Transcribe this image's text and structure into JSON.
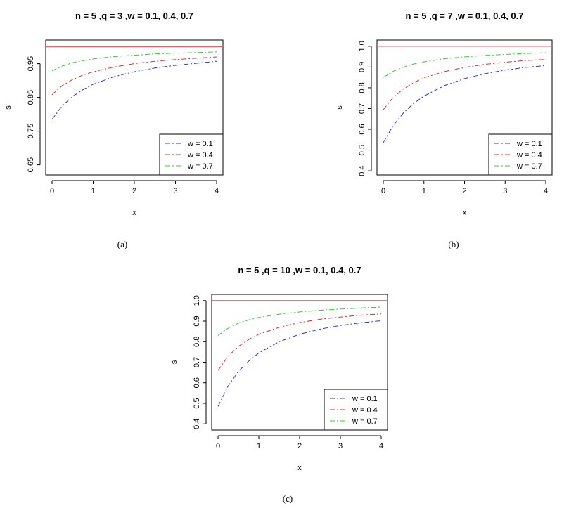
{
  "chart_data": [
    {
      "type": "line",
      "panel_label": "(a)",
      "title": "n = 5 ,q = 3 ,w = 0.1, 0.4, 0.7",
      "xlabel": "x",
      "ylabel": "s",
      "xlim": [
        0,
        4
      ],
      "ylim": [
        0.62,
        1.02
      ],
      "x_ticks": [
        "0",
        "1",
        "2",
        "3",
        "4"
      ],
      "y_ticks": [
        "0.65",
        "0.75",
        "0.85",
        "0.95"
      ],
      "legend_position": "bottom-right",
      "reference_line": {
        "y": 1.0,
        "color": "#e06666"
      },
      "x": [
        0,
        0.25,
        0.5,
        0.75,
        1,
        1.5,
        2,
        2.5,
        3,
        3.5,
        4
      ],
      "series": [
        {
          "name": "w = 0.1",
          "color": "#3333cc",
          "values": [
            0.785,
            0.825,
            0.853,
            0.873,
            0.889,
            0.911,
            0.926,
            0.937,
            0.945,
            0.951,
            0.957
          ]
        },
        {
          "name": "w = 0.4",
          "color": "#cc3333",
          "values": [
            0.858,
            0.885,
            0.903,
            0.916,
            0.926,
            0.94,
            0.95,
            0.957,
            0.962,
            0.966,
            0.97
          ]
        },
        {
          "name": "w = 0.7",
          "color": "#33cc33",
          "values": [
            0.929,
            0.943,
            0.953,
            0.959,
            0.964,
            0.971,
            0.975,
            0.979,
            0.981,
            0.983,
            0.985
          ]
        }
      ]
    },
    {
      "type": "line",
      "panel_label": "(b)",
      "title": "n = 5 ,q = 7 ,w = 0.1, 0.4, 0.7",
      "xlabel": "x",
      "ylabel": "s",
      "xlim": [
        0,
        4
      ],
      "ylim": [
        0.38,
        1.03
      ],
      "x_ticks": [
        "0",
        "1",
        "2",
        "3",
        "4"
      ],
      "y_ticks": [
        "0.4",
        "0.5",
        "0.6",
        "0.7",
        "0.8",
        "0.9",
        "1.0"
      ],
      "legend_position": "bottom-right",
      "reference_line": {
        "y": 1.0,
        "color": "#e06666"
      },
      "x": [
        0,
        0.25,
        0.5,
        0.75,
        1,
        1.5,
        2,
        2.5,
        3,
        3.5,
        4
      ],
      "series": [
        {
          "name": "w = 0.1",
          "color": "#3333cc",
          "values": [
            0.536,
            0.62,
            0.68,
            0.725,
            0.76,
            0.81,
            0.844,
            0.868,
            0.885,
            0.898,
            0.907
          ]
        },
        {
          "name": "w = 0.4",
          "color": "#cc3333",
          "values": [
            0.695,
            0.755,
            0.795,
            0.825,
            0.848,
            0.878,
            0.898,
            0.913,
            0.923,
            0.931,
            0.937
          ]
        },
        {
          "name": "w = 0.7",
          "color": "#33cc33",
          "values": [
            0.85,
            0.88,
            0.9,
            0.915,
            0.925,
            0.94,
            0.949,
            0.956,
            0.961,
            0.965,
            0.969
          ]
        }
      ]
    },
    {
      "type": "line",
      "panel_label": "(c)",
      "title": "n = 5 ,q = 10 ,w = 0.1, 0.4, 0.7",
      "xlabel": "x",
      "ylabel": "s",
      "xlim": [
        0,
        4
      ],
      "ylim": [
        0.37,
        1.03
      ],
      "x_ticks": [
        "0",
        "1",
        "2",
        "3",
        "4"
      ],
      "y_ticks": [
        "0.4",
        "0.5",
        "0.6",
        "0.7",
        "0.8",
        "0.9",
        "1.0"
      ],
      "legend_position": "bottom-right",
      "reference_line": {
        "y": 1.0,
        "color": "#e06666"
      },
      "x": [
        0,
        0.25,
        0.5,
        0.75,
        1,
        1.5,
        2,
        2.5,
        3,
        3.5,
        4
      ],
      "series": [
        {
          "name": "w = 0.1",
          "color": "#3333cc",
          "values": [
            0.485,
            0.585,
            0.655,
            0.705,
            0.745,
            0.8,
            0.836,
            0.861,
            0.879,
            0.892,
            0.902
          ]
        },
        {
          "name": "w = 0.4",
          "color": "#cc3333",
          "values": [
            0.66,
            0.73,
            0.777,
            0.81,
            0.836,
            0.87,
            0.893,
            0.909,
            0.92,
            0.929,
            0.935
          ]
        },
        {
          "name": "w = 0.7",
          "color": "#33cc33",
          "values": [
            0.83,
            0.866,
            0.89,
            0.906,
            0.918,
            0.934,
            0.945,
            0.953,
            0.959,
            0.964,
            0.968
          ]
        }
      ]
    }
  ]
}
